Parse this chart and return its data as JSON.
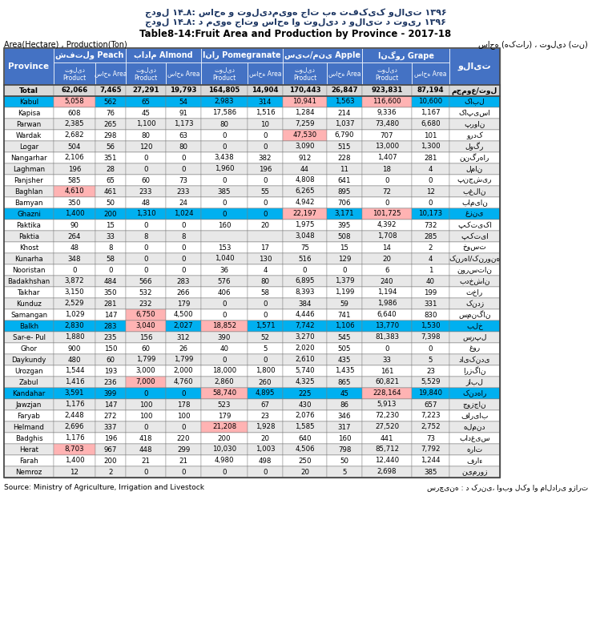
{
  "title_dari1": "جدول ۱۴ـ۸: ساحه و تولیدمیوه جات به تفکیک ولایت ۱۳۹۶",
  "title_dari2": "جدول ۱۴ـ۸: د میوه جاتو ساحه او تولید د ولایت د تویر ۱۳۹۶",
  "title_eng": "Table8-14:Fruit Area and Production by Province - 2017-18",
  "area_prod_label": "Area(Hectare) , Production(Ton)",
  "area_prod_dari": "ساحه (هکتار) ، تولید (تن)",
  "source_eng": "Source: Ministry of Agriculture, Irrigation and Livestock",
  "source_dari": "سرچینه : د کرنی، اوبو لکو او مالداری وزارت",
  "peach_label": "شفتلو Peach",
  "almond_label": "بادام Almond",
  "pom_label": "انار Pomegranate",
  "apple_label": "سیب/منی Apple",
  "grape_label": "انگور Grape",
  "province_label": "Province",
  "walayat_label": "ولایت",
  "product_label": "تولید\nProduct",
  "area_label": "ساحه Area",
  "grape_area_label": "ساحه Area",
  "total_dari": "مجموع/تول",
  "header_bg": "#4472C4",
  "blue_row_bg": "#00B0F0",
  "alt_row_bg": "#E8E8E8",
  "normal_row_bg": "#FFFFFF",
  "total_row_bg": "#D9D9D9",
  "highlight_pink": "#FFB3B3",
  "border_color": "#808080",
  "rows": [
    {
      "province": "Total",
      "dari": "مجموع/تول",
      "v": [
        "62,066",
        "7,465",
        "27,291",
        "19,793",
        "164,805",
        "14,904",
        "170,443",
        "26,847",
        "923,831",
        "87,194"
      ],
      "style": "total",
      "hi": []
    },
    {
      "province": "Kabul",
      "dari": "کابل",
      "v": [
        "5,058",
        "562",
        "65",
        "54",
        "2,983",
        "314",
        "10,941",
        "1,563",
        "116,600",
        "10,600"
      ],
      "style": "blue",
      "hi": [
        0,
        6,
        8
      ]
    },
    {
      "province": "Kapisa",
      "dari": "کاپیسا",
      "v": [
        "608",
        "76",
        "45",
        "91",
        "17,586",
        "1,516",
        "1,284",
        "214",
        "9,336",
        "1,167"
      ],
      "style": "normal",
      "hi": []
    },
    {
      "province": "Parwan",
      "dari": "پروان",
      "v": [
        "2,385",
        "265",
        "1,100",
        "1,173",
        "80",
        "10",
        "7,259",
        "1,037",
        "73,480",
        "6,680"
      ],
      "style": "alt",
      "hi": []
    },
    {
      "province": "Wardak",
      "dari": "وردک",
      "v": [
        "2,682",
        "298",
        "80",
        "63",
        "0",
        "0",
        "47,530",
        "6,790",
        "707",
        "101"
      ],
      "style": "normal",
      "hi": [
        6
      ]
    },
    {
      "province": "Logar",
      "dari": "لوگر",
      "v": [
        "504",
        "56",
        "120",
        "80",
        "0",
        "0",
        "3,090",
        "515",
        "13,000",
        "1,300"
      ],
      "style": "alt",
      "hi": []
    },
    {
      "province": "Nangarhar",
      "dari": "ننگرهار",
      "v": [
        "2,106",
        "351",
        "0",
        "0",
        "3,438",
        "382",
        "912",
        "228",
        "1,407",
        "281"
      ],
      "style": "normal",
      "hi": []
    },
    {
      "province": "Laghman",
      "dari": "لمان",
      "v": [
        "196",
        "28",
        "0",
        "0",
        "1,960",
        "196",
        "44",
        "11",
        "18",
        "4"
      ],
      "style": "alt",
      "hi": []
    },
    {
      "province": "Panjsher",
      "dari": "پنجشیر",
      "v": [
        "585",
        "65",
        "60",
        "73",
        "0",
        "0",
        "4,808",
        "641",
        "0",
        "0"
      ],
      "style": "normal",
      "hi": []
    },
    {
      "province": "Baghlan",
      "dari": "بغلان",
      "v": [
        "4,610",
        "461",
        "233",
        "233",
        "385",
        "55",
        "6,265",
        "895",
        "72",
        "12"
      ],
      "style": "alt",
      "hi": [
        0
      ]
    },
    {
      "province": "Bamyan",
      "dari": "بامیان",
      "v": [
        "350",
        "50",
        "48",
        "24",
        "0",
        "0",
        "4,942",
        "706",
        "0",
        "0"
      ],
      "style": "normal",
      "hi": []
    },
    {
      "province": "Ghazni",
      "dari": "غزنی",
      "v": [
        "1,400",
        "200",
        "1,310",
        "1,024",
        "0",
        "0",
        "22,197",
        "3,171",
        "101,725",
        "10,173"
      ],
      "style": "blue",
      "hi": [
        6,
        8
      ]
    },
    {
      "province": "Paktika",
      "dari": "پکتیکا",
      "v": [
        "90",
        "15",
        "0",
        "0",
        "160",
        "20",
        "1,975",
        "395",
        "4,392",
        "732"
      ],
      "style": "normal",
      "hi": []
    },
    {
      "province": "Paktia",
      "dari": "پکتیا",
      "v": [
        "264",
        "33",
        "8",
        "8",
        "",
        "",
        "3,048",
        "508",
        "1,708",
        "285"
      ],
      "style": "alt",
      "hi": []
    },
    {
      "province": "Khost",
      "dari": "خوست",
      "v": [
        "48",
        "8",
        "0",
        "0",
        "153",
        "17",
        "75",
        "15",
        "14",
        "2"
      ],
      "style": "normal",
      "hi": []
    },
    {
      "province": "Kunarha",
      "dari": "کنرها/کنرونه",
      "v": [
        "348",
        "58",
        "0",
        "0",
        "1,040",
        "130",
        "516",
        "129",
        "20",
        "4"
      ],
      "style": "alt",
      "hi": []
    },
    {
      "province": "Nooristan",
      "dari": "نورستان",
      "v": [
        "0",
        "0",
        "0",
        "0",
        "36",
        "4",
        "0",
        "0",
        "6",
        "1"
      ],
      "style": "normal",
      "hi": []
    },
    {
      "province": "Badakhshan",
      "dari": "بدخشان",
      "v": [
        "3,872",
        "484",
        "566",
        "283",
        "576",
        "80",
        "6,895",
        "1,379",
        "240",
        "40"
      ],
      "style": "alt",
      "hi": []
    },
    {
      "province": "Takhar",
      "dari": "تخار",
      "v": [
        "3,150",
        "350",
        "532",
        "266",
        "406",
        "58",
        "8,393",
        "1,199",
        "1,194",
        "199"
      ],
      "style": "normal",
      "hi": []
    },
    {
      "province": "Kunduz",
      "dari": "کندز",
      "v": [
        "2,529",
        "281",
        "232",
        "179",
        "0",
        "0",
        "384",
        "59",
        "1,986",
        "331"
      ],
      "style": "alt",
      "hi": []
    },
    {
      "province": "Samangan",
      "dari": "سمنگان",
      "v": [
        "1,029",
        "147",
        "6,750",
        "4,500",
        "0",
        "0",
        "4,446",
        "741",
        "6,640",
        "830"
      ],
      "style": "normal",
      "hi": [
        2
      ]
    },
    {
      "province": "Balkh",
      "dari": "بلخ",
      "v": [
        "2,830",
        "283",
        "3,040",
        "2,027",
        "18,852",
        "1,571",
        "7,742",
        "1,106",
        "13,770",
        "1,530"
      ],
      "style": "blue",
      "hi": [
        2,
        4
      ]
    },
    {
      "province": "Sar-e- Pul",
      "dari": "سرپل",
      "v": [
        "1,880",
        "235",
        "156",
        "312",
        "390",
        "52",
        "3,270",
        "545",
        "81,383",
        "7,398"
      ],
      "style": "alt",
      "hi": []
    },
    {
      "province": "Ghor",
      "dari": "غور",
      "v": [
        "900",
        "150",
        "60",
        "26",
        "40",
        "5",
        "2,020",
        "505",
        "0",
        "0"
      ],
      "style": "normal",
      "hi": []
    },
    {
      "province": "Daykundy",
      "dari": "دایکندی",
      "v": [
        "480",
        "60",
        "1,799",
        "1,799",
        "0",
        "0",
        "2,610",
        "435",
        "33",
        "5"
      ],
      "style": "alt",
      "hi": []
    },
    {
      "province": "Urozgan",
      "dari": "ارزگان",
      "v": [
        "1,544",
        "193",
        "3,000",
        "2,000",
        "18,000",
        "1,800",
        "5,740",
        "1,435",
        "161",
        "23"
      ],
      "style": "normal",
      "hi": []
    },
    {
      "province": "Zabul",
      "dari": "زابل",
      "v": [
        "1,416",
        "236",
        "7,000",
        "4,760",
        "2,860",
        "260",
        "4,325",
        "865",
        "60,821",
        "5,529"
      ],
      "style": "alt",
      "hi": [
        2
      ]
    },
    {
      "province": "Kandahar",
      "dari": "کندهار",
      "v": [
        "3,591",
        "399",
        "0",
        "0",
        "58,740",
        "4,895",
        "225",
        "45",
        "228,164",
        "19,840"
      ],
      "style": "blue",
      "hi": [
        4,
        8
      ]
    },
    {
      "province": "Jawzjan",
      "dari": "جوزجان",
      "v": [
        "1,176",
        "147",
        "100",
        "178",
        "523",
        "67",
        "430",
        "86",
        "5,913",
        "657"
      ],
      "style": "alt",
      "hi": []
    },
    {
      "province": "Faryab",
      "dari": "فاریاب",
      "v": [
        "2,448",
        "272",
        "100",
        "100",
        "179",
        "23",
        "2,076",
        "346",
        "72,230",
        "7,223"
      ],
      "style": "normal",
      "hi": []
    },
    {
      "province": "Helmand",
      "dari": "هلمند",
      "v": [
        "2,696",
        "337",
        "0",
        "0",
        "21,208",
        "1,928",
        "1,585",
        "317",
        "27,520",
        "2,752"
      ],
      "style": "alt",
      "hi": [
        4
      ]
    },
    {
      "province": "Badghis",
      "dari": "بادغیس",
      "v": [
        "1,176",
        "196",
        "418",
        "220",
        "200",
        "20",
        "640",
        "160",
        "441",
        "73"
      ],
      "style": "normal",
      "hi": []
    },
    {
      "province": "Herat",
      "dari": "هرات",
      "v": [
        "8,703",
        "967",
        "448",
        "299",
        "10,030",
        "1,003",
        "4,506",
        "798",
        "85,712",
        "7,792"
      ],
      "style": "alt",
      "hi": [
        0
      ]
    },
    {
      "province": "Farah",
      "dari": "فراء",
      "v": [
        "1,400",
        "200",
        "21",
        "21",
        "4,980",
        "498",
        "250",
        "50",
        "12,440",
        "1,244"
      ],
      "style": "normal",
      "hi": []
    },
    {
      "province": "Nemroz",
      "dari": "نیمروز",
      "v": [
        "12",
        "2",
        "0",
        "0",
        "0",
        "0",
        "20",
        "5",
        "2,698",
        "385"
      ],
      "style": "alt",
      "hi": []
    }
  ]
}
